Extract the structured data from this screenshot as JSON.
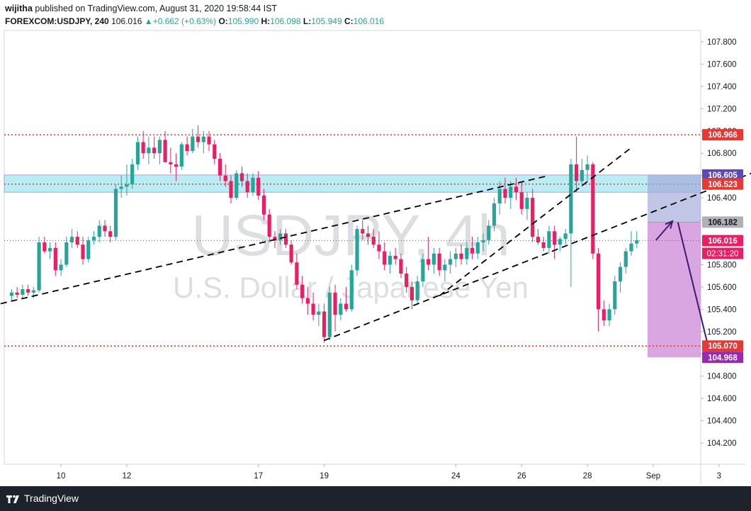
{
  "header": {
    "publisher": "wijitha",
    "published_text": "published on TradingView.com, August 31, 2020 19:58:44 IST",
    "symbol_interval": "FOREXCOM:USDJPY, 240",
    "last": "106.016",
    "change": "+0.662 (+0.63%)",
    "o_label": "O:",
    "o_value": "105.990",
    "h_label": "H:",
    "h_value": "106.098",
    "l_label": "L:",
    "l_value": "105.949",
    "c_label": "C:",
    "c_value": "106.016"
  },
  "footer": {
    "brand": "TradingView"
  },
  "colors": {
    "up": "#26a69a",
    "down": "#e91e63",
    "level": "#e53935",
    "zone": "#80deea",
    "short_profit": "#c980d6",
    "short_risk": "#9fa8da"
  },
  "chart_data": {
    "type": "candlestick",
    "watermark_symbol": "USDJPY, 4h",
    "watermark_name": "U.S. Dollar / Japanese Yen",
    "ylim": [
      104.0,
      108.0
    ],
    "y_ticks": [
      "104.200",
      "104.400",
      "104.600",
      "104.800",
      "105.000",
      "105.200",
      "105.400",
      "105.600",
      "105.800",
      "106.000",
      "106.200",
      "106.400",
      "106.600",
      "106.800",
      "107.000",
      "107.200",
      "107.400",
      "107.600",
      "107.800"
    ],
    "x_ticks": [
      {
        "label": "10",
        "bar": 9
      },
      {
        "label": "12",
        "bar": 21
      },
      {
        "label": "17",
        "bar": 45
      },
      {
        "label": "19",
        "bar": 57
      },
      {
        "label": "24",
        "bar": 81
      },
      {
        "label": "26",
        "bar": 93
      },
      {
        "label": "28",
        "bar": 105
      },
      {
        "label": "Sep",
        "bar": 117
      },
      {
        "label": "3",
        "bar": 129
      }
    ],
    "candles": [
      [
        105.52,
        105.58,
        105.47,
        105.55
      ],
      [
        105.55,
        105.6,
        105.5,
        105.53
      ],
      [
        105.53,
        105.62,
        105.5,
        105.58
      ],
      [
        105.58,
        105.62,
        105.52,
        105.55
      ],
      [
        105.55,
        105.6,
        105.5,
        105.57
      ],
      [
        105.57,
        106.05,
        105.55,
        106.0
      ],
      [
        106.0,
        106.05,
        105.9,
        105.92
      ],
      [
        105.92,
        106.0,
        105.85,
        105.95
      ],
      [
        105.95,
        106.0,
        105.7,
        105.75
      ],
      [
        105.75,
        105.85,
        105.7,
        105.8
      ],
      [
        105.8,
        106.05,
        105.78,
        106.0
      ],
      [
        106.0,
        106.12,
        105.95,
        106.05
      ],
      [
        106.05,
        106.1,
        105.95,
        105.98
      ],
      [
        105.98,
        106.05,
        105.8,
        105.85
      ],
      [
        105.85,
        106.05,
        105.82,
        106.02
      ],
      [
        106.02,
        106.1,
        105.98,
        106.05
      ],
      [
        106.05,
        106.2,
        106.0,
        106.15
      ],
      [
        106.15,
        106.2,
        106.05,
        106.1
      ],
      [
        106.1,
        106.15,
        106.0,
        106.05
      ],
      [
        106.05,
        106.52,
        106.02,
        106.48
      ],
      [
        106.48,
        106.6,
        106.4,
        106.5
      ],
      [
        106.5,
        106.7,
        106.42,
        106.52
      ],
      [
        106.52,
        106.75,
        106.48,
        106.7
      ],
      [
        106.7,
        106.95,
        106.65,
        106.9
      ],
      [
        106.9,
        107.0,
        106.75,
        106.8
      ],
      [
        106.8,
        106.95,
        106.7,
        106.85
      ],
      [
        106.85,
        106.95,
        106.75,
        106.8
      ],
      [
        106.8,
        106.95,
        106.7,
        106.92
      ],
      [
        106.92,
        107.0,
        106.75,
        106.72
      ],
      [
        106.72,
        106.85,
        106.62,
        106.7
      ],
      [
        106.7,
        106.8,
        106.55,
        106.68
      ],
      [
        106.68,
        106.9,
        106.65,
        106.88
      ],
      [
        106.88,
        106.95,
        106.78,
        106.82
      ],
      [
        106.82,
        107.02,
        106.8,
        106.95
      ],
      [
        106.95,
        107.05,
        106.85,
        106.9
      ],
      [
        106.9,
        107.0,
        106.8,
        106.95
      ],
      [
        106.95,
        107.0,
        106.82,
        106.88
      ],
      [
        106.88,
        106.92,
        106.7,
        106.75
      ],
      [
        106.75,
        106.8,
        106.55,
        106.6
      ],
      [
        106.6,
        106.7,
        106.5,
        106.55
      ],
      [
        106.55,
        106.6,
        106.35,
        106.4
      ],
      [
        106.4,
        106.65,
        106.38,
        106.62
      ],
      [
        106.62,
        106.68,
        106.5,
        106.55
      ],
      [
        106.55,
        106.62,
        106.4,
        106.45
      ],
      [
        106.45,
        106.62,
        106.42,
        106.58
      ],
      [
        106.58,
        106.64,
        106.38,
        106.42
      ],
      [
        106.42,
        106.48,
        106.2,
        106.25
      ],
      [
        106.25,
        106.3,
        106.0,
        106.05
      ],
      [
        106.05,
        106.1,
        105.95,
        106.02
      ],
      [
        106.02,
        106.12,
        105.98,
        106.08
      ],
      [
        106.08,
        106.12,
        105.95,
        105.98
      ],
      [
        105.98,
        106.02,
        105.8,
        105.82
      ],
      [
        105.82,
        105.9,
        105.58,
        105.62
      ],
      [
        105.62,
        105.7,
        105.45,
        105.5
      ],
      [
        105.5,
        105.6,
        105.35,
        105.45
      ],
      [
        105.45,
        105.55,
        105.3,
        105.35
      ],
      [
        105.35,
        105.45,
        105.25,
        105.38
      ],
      [
        105.38,
        105.45,
        105.1,
        105.15
      ],
      [
        105.15,
        105.6,
        105.12,
        105.55
      ],
      [
        105.55,
        105.62,
        105.2,
        105.35
      ],
      [
        105.35,
        105.5,
        105.3,
        105.45
      ],
      [
        105.45,
        105.6,
        105.38,
        105.4
      ],
      [
        105.4,
        105.8,
        105.38,
        105.75
      ],
      [
        105.75,
        106.15,
        105.7,
        106.12
      ],
      [
        106.12,
        106.2,
        106.02,
        106.08
      ],
      [
        106.08,
        106.15,
        105.98,
        106.05
      ],
      [
        106.05,
        106.12,
        105.95,
        105.98
      ],
      [
        105.98,
        106.1,
        105.85,
        105.92
      ],
      [
        105.92,
        106.0,
        105.75,
        105.8
      ],
      [
        105.8,
        105.92,
        105.72,
        105.88
      ],
      [
        105.88,
        105.95,
        105.8,
        105.85
      ],
      [
        105.85,
        105.9,
        105.68,
        105.72
      ],
      [
        105.72,
        105.78,
        105.55,
        105.6
      ],
      [
        105.6,
        105.65,
        105.4,
        105.48
      ],
      [
        105.48,
        105.7,
        105.45,
        105.65
      ],
      [
        105.65,
        105.9,
        105.6,
        105.85
      ],
      [
        105.85,
        106.05,
        105.75,
        105.8
      ],
      [
        105.8,
        105.95,
        105.72,
        105.9
      ],
      [
        105.9,
        105.95,
        105.7,
        105.75
      ],
      [
        105.75,
        105.85,
        105.65,
        105.8
      ],
      [
        105.8,
        105.92,
        105.72,
        105.85
      ],
      [
        105.85,
        105.95,
        105.78,
        105.9
      ],
      [
        105.9,
        105.98,
        105.8,
        105.85
      ],
      [
        105.85,
        106.0,
        105.8,
        105.95
      ],
      [
        105.95,
        106.05,
        105.85,
        105.9
      ],
      [
        105.9,
        106.05,
        105.85,
        106.0
      ],
      [
        106.0,
        106.08,
        105.92,
        106.02
      ],
      [
        106.02,
        106.2,
        105.98,
        106.15
      ],
      [
        106.15,
        106.4,
        106.1,
        106.35
      ],
      [
        106.35,
        106.55,
        106.25,
        106.48
      ],
      [
        106.48,
        106.58,
        106.35,
        106.4
      ],
      [
        106.4,
        106.55,
        106.3,
        106.5
      ],
      [
        106.5,
        106.58,
        106.38,
        106.45
      ],
      [
        106.45,
        106.55,
        106.25,
        106.3
      ],
      [
        106.3,
        106.45,
        106.2,
        106.4
      ],
      [
        106.4,
        106.48,
        106.0,
        106.05
      ],
      [
        106.05,
        106.12,
        105.98,
        106.0
      ],
      [
        106.0,
        106.05,
        105.92,
        105.95
      ],
      [
        105.95,
        106.15,
        105.9,
        106.1
      ],
      [
        106.1,
        106.15,
        105.85,
        105.98
      ],
      [
        105.98,
        106.05,
        105.92,
        106.03
      ],
      [
        106.03,
        106.12,
        105.98,
        106.08
      ],
      [
        106.08,
        106.75,
        105.6,
        106.7
      ],
      [
        106.7,
        106.95,
        106.45,
        106.55
      ],
      [
        106.55,
        106.75,
        106.5,
        106.65
      ],
      [
        106.65,
        106.78,
        106.55,
        106.7
      ],
      [
        106.7,
        106.72,
        105.85,
        105.9
      ],
      [
        105.9,
        105.95,
        105.2,
        105.4
      ],
      [
        105.4,
        105.48,
        105.25,
        105.3
      ],
      [
        105.3,
        105.45,
        105.25,
        105.4
      ],
      [
        105.4,
        105.7,
        105.35,
        105.65
      ],
      [
        105.65,
        105.82,
        105.55,
        105.78
      ],
      [
        105.78,
        105.95,
        105.72,
        105.92
      ],
      [
        105.92,
        106.1,
        105.88,
        105.99
      ],
      [
        105.99,
        106.1,
        105.95,
        106.02
      ]
    ],
    "horizontal_levels": [
      {
        "price": 106.966,
        "label": "106.966"
      },
      {
        "price": 105.07,
        "label": "105.070"
      }
    ],
    "zone": {
      "top": 106.605,
      "bottom": 106.45
    },
    "position": {
      "type": "short",
      "entry": 106.182,
      "stop": 106.605,
      "target": 104.968,
      "start_bar": 117
    },
    "price_labels": [
      {
        "price": 106.605,
        "label": "106.605",
        "color": "#5c48b8"
      },
      {
        "price": 106.523,
        "label": "106.523",
        "color": "#e53935"
      },
      {
        "price": 106.182,
        "label": "106.182",
        "color": "#b0b0b8"
      },
      {
        "price": 106.016,
        "label": "106.016",
        "color": "#e91e63"
      },
      {
        "price": 104.968,
        "label": "104.968",
        "color": "#9c27b0"
      }
    ],
    "countdown": "02:31:20",
    "trendlines": [
      {
        "bar1": -2,
        "p1": 105.45,
        "bar2": 98,
        "p2": 106.6
      },
      {
        "bar1": 57,
        "p1": 105.12,
        "bar2": 138,
        "p2": 106.68
      },
      {
        "bar1": 78,
        "p1": 105.52,
        "bar2": 113,
        "p2": 106.85
      }
    ],
    "arrows": [
      {
        "bar1": 117.5,
        "p1": 106.02,
        "bar2": 120.5,
        "p2": 106.19
      },
      {
        "bar1": 121.5,
        "p1": 106.18,
        "bar2": 127.5,
        "p2": 104.97
      }
    ]
  }
}
